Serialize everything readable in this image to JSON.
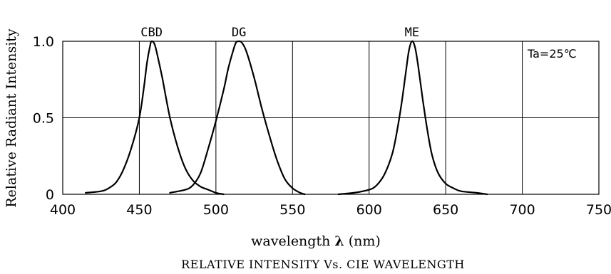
{
  "chart_data": {
    "type": "line",
    "title": "RELATIVE INTENSITY Vs. CIE WAVELENGTH",
    "xlabel_prefix": "wavelength ",
    "xlabel_symbol": "λ",
    "xlabel_suffix": " (nm)",
    "ylabel": "Relative Radiant Intensity",
    "annotation": "Ta=25℃",
    "xlim": [
      400,
      750
    ],
    "ylim": [
      0,
      1.0
    ],
    "x_ticks": [
      400,
      450,
      500,
      550,
      600,
      650,
      700,
      750
    ],
    "x_tick_labels": [
      "400",
      "450",
      "500",
      "550",
      "600",
      "650",
      "700",
      "750"
    ],
    "y_ticks": [
      0,
      0.5,
      1.0
    ],
    "y_tick_labels": [
      "0",
      "0.5",
      "1.0"
    ],
    "grid": true,
    "series": [
      {
        "name": "CBD",
        "x": [
          415,
          425,
          430,
          435,
          440,
          445,
          450,
          453,
          455,
          457,
          458,
          460,
          462,
          465,
          470,
          475,
          480,
          485,
          490,
          495,
          500,
          505
        ],
        "y": [
          0.01,
          0.02,
          0.04,
          0.08,
          0.17,
          0.31,
          0.5,
          0.7,
          0.86,
          0.97,
          1.0,
          0.98,
          0.9,
          0.76,
          0.5,
          0.31,
          0.17,
          0.09,
          0.05,
          0.03,
          0.01,
          0.0
        ]
      },
      {
        "name": "DG",
        "x": [
          470,
          480,
          485,
          490,
          495,
          500,
          505,
          508,
          511,
          513,
          515,
          517,
          520,
          525,
          530,
          535,
          540,
          545,
          550,
          555,
          558
        ],
        "y": [
          0.01,
          0.03,
          0.06,
          0.14,
          0.3,
          0.48,
          0.68,
          0.82,
          0.93,
          0.99,
          1.0,
          0.99,
          0.93,
          0.76,
          0.56,
          0.38,
          0.22,
          0.1,
          0.04,
          0.01,
          0.0
        ]
      },
      {
        "name": "ME",
        "x": [
          580,
          590,
          600,
          605,
          610,
          615,
          618,
          621,
          624,
          626,
          628,
          630,
          632,
          635,
          638,
          641,
          645,
          650,
          655,
          660,
          670,
          677
        ],
        "y": [
          0.0,
          0.01,
          0.03,
          0.06,
          0.13,
          0.26,
          0.4,
          0.58,
          0.8,
          0.94,
          1.0,
          0.96,
          0.84,
          0.62,
          0.42,
          0.26,
          0.14,
          0.07,
          0.04,
          0.02,
          0.01,
          0.0
        ]
      }
    ]
  }
}
